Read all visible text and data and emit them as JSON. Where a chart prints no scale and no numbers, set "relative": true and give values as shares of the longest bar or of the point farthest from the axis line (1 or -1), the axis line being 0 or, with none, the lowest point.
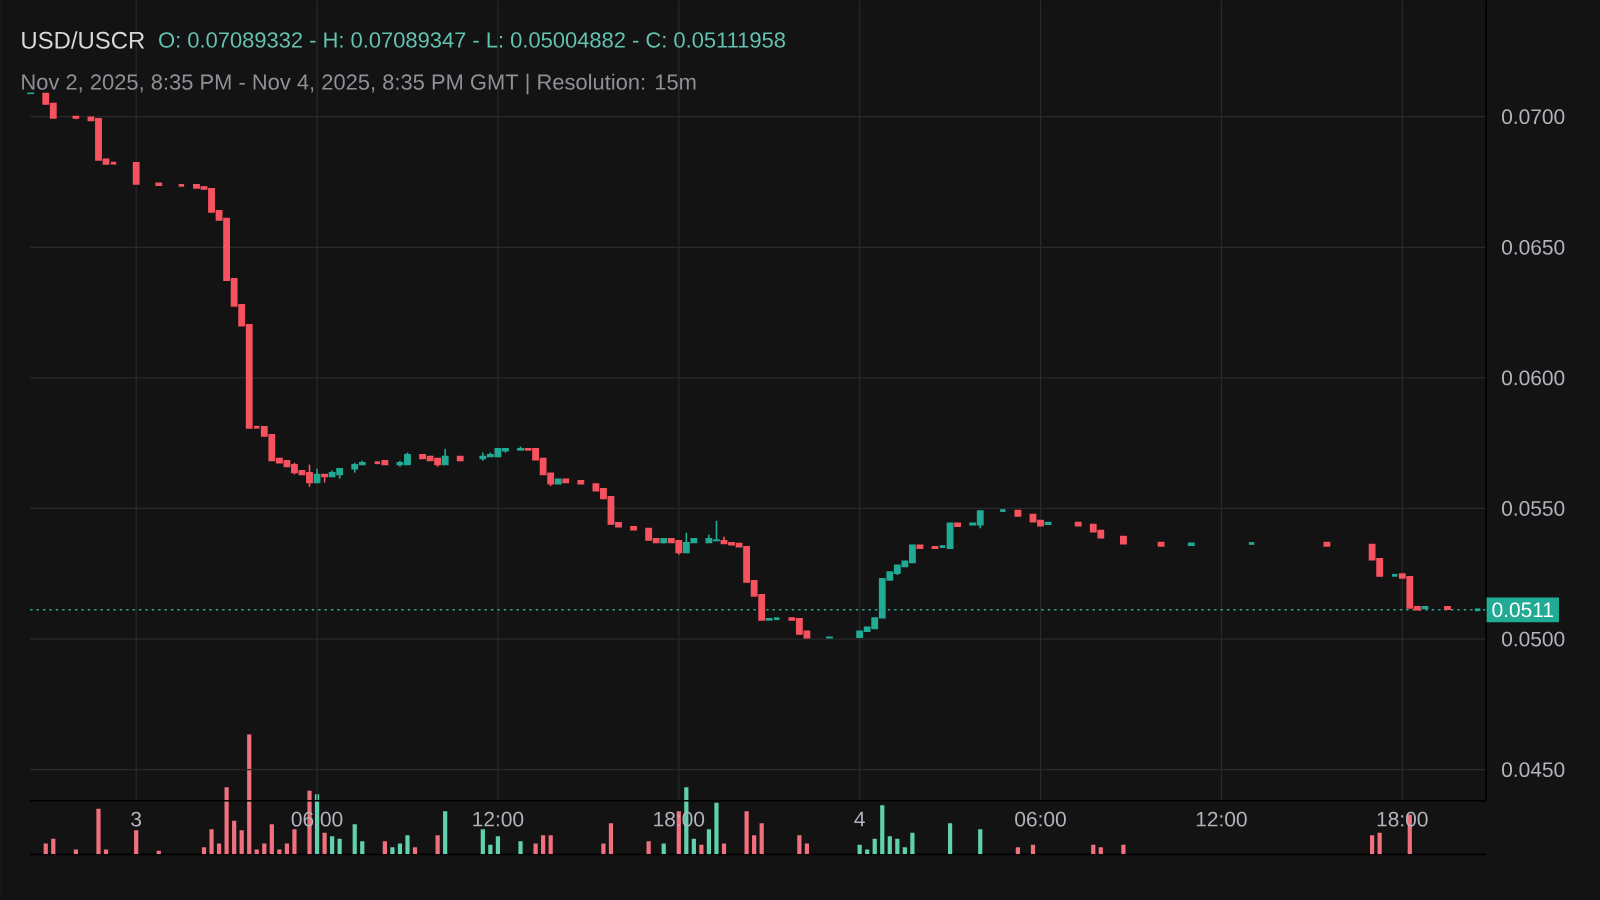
{
  "chart_data": [
    {
      "type": "candlestick",
      "title": "USD/USCR",
      "annotations": [
        "O: 0.07089332 - H: 0.07089347 - L: 0.05004882 - C: 0.05111958",
        "Nov 2, 2025, 8:35 PM - Nov 4, 2025, 8:35 PM GMT   |   Resolution: 15m"
      ],
      "series": [
        {
          "color": "#22ab94",
          "x": [
            "2025-11-02T20:30",
            "2025-11-03T06:00",
            "2025-11-03T06:30",
            "2025-11-03T06:45",
            "2025-11-03T07:15",
            "2025-11-03T07:30",
            "2025-11-03T08:45",
            "2025-11-03T09:00",
            "2025-11-03T10:15",
            "2025-11-03T11:30",
            "2025-11-03T11:45",
            "2025-11-03T12:00",
            "2025-11-03T12:15",
            "2025-11-03T12:45",
            "2025-11-03T14:00",
            "2025-11-03T17:30",
            "2025-11-03T18:15",
            "2025-11-03T18:30",
            "2025-11-03T19:00",
            "2025-11-03T19:15",
            "2025-11-03T21:00",
            "2025-11-03T21:15",
            "2025-11-03T23:00",
            "2025-11-04T00:00",
            "2025-11-04T00:15",
            "2025-11-04T00:30",
            "2025-11-04T00:45",
            "2025-11-04T01:00",
            "2025-11-04T01:15",
            "2025-11-04T01:30",
            "2025-11-04T01:45",
            "2025-11-04T02:45",
            "2025-11-04T03:00",
            "2025-11-04T03:45",
            "2025-11-04T04:00",
            "2025-11-04T04:45",
            "2025-11-04T06:15",
            "2025-11-04T11:00",
            "2025-11-04T13:00",
            "2025-11-04T17:45",
            "2025-11-04T18:45",
            "2025-11-04T20:30"
          ],
          "ohlc": [
            [
              0.07089,
              0.0709,
              0.07089,
              0.0709
            ],
            [
              0.05599,
              0.05652,
              0.05599,
              0.0563
            ],
            [
              0.05622,
              0.05645,
              0.05622,
              0.05637
            ],
            [
              0.0563,
              0.05652,
              0.05614,
              0.05652
            ],
            [
              0.05652,
              0.05675,
              0.05637,
              0.05668
            ],
            [
              0.05668,
              0.05683,
              0.05668,
              0.05675
            ],
            [
              0.05668,
              0.05683,
              0.0566,
              0.05675
            ],
            [
              0.05668,
              0.05714,
              0.05668,
              0.05706
            ],
            [
              0.05668,
              0.05729,
              0.05668,
              0.05699
            ],
            [
              0.05691,
              0.05714,
              0.05683,
              0.05699
            ],
            [
              0.05699,
              0.05714,
              0.05699,
              0.05706
            ],
            [
              0.05699,
              0.05729,
              0.05699,
              0.05729
            ],
            [
              0.05721,
              0.05729,
              0.05714,
              0.05729
            ],
            [
              0.05724,
              0.05737,
              0.05724,
              0.05729
            ],
            [
              0.05594,
              0.05612,
              0.05594,
              0.05612
            ],
            [
              0.05369,
              0.05384,
              0.05366,
              0.05384
            ],
            [
              0.05331,
              0.05407,
              0.05331,
              0.05369
            ],
            [
              0.05369,
              0.05384,
              0.05369,
              0.05384
            ],
            [
              0.05369,
              0.05399,
              0.05369,
              0.05384
            ],
            [
              0.05377,
              0.05453,
              0.05377,
              0.05379
            ],
            [
              0.05073,
              0.05078,
              0.05073,
              0.05078
            ],
            [
              0.05078,
              0.05078,
              0.05078,
              0.05078
            ],
            [
              0.05005,
              0.05007,
              0.05005,
              0.05007
            ],
            [
              0.05007,
              0.0503,
              0.05007,
              0.0503
            ],
            [
              0.0503,
              0.05045,
              0.0503,
              0.05045
            ],
            [
              0.0504,
              0.05081,
              0.0504,
              0.05081
            ],
            [
              0.05081,
              0.05231,
              0.05081,
              0.05231
            ],
            [
              0.05226,
              0.05257,
              0.05226,
              0.05257
            ],
            [
              0.05252,
              0.05283,
              0.05245,
              0.05283
            ],
            [
              0.05278,
              0.05298,
              0.05278,
              0.05298
            ],
            [
              0.05293,
              0.05359,
              0.05293,
              0.05359
            ],
            [
              0.05354,
              0.05354,
              0.05354,
              0.05354
            ],
            [
              0.05347,
              0.05444,
              0.05347,
              0.05444
            ],
            [
              0.05437,
              0.05444,
              0.05437,
              0.05444
            ],
            [
              0.05437,
              0.0549,
              0.05424,
              0.0549
            ],
            [
              0.05492,
              0.05492,
              0.05492,
              0.05492
            ],
            [
              0.05439,
              0.05446,
              0.05439,
              0.05446
            ],
            [
              0.05359,
              0.05367,
              0.05359,
              0.05367
            ],
            [
              0.05366,
              0.05366,
              0.05366,
              0.05366
            ],
            [
              0.05244,
              0.05244,
              0.05244,
              0.05244
            ],
            [
              0.05117,
              0.05124,
              0.05117,
              0.05124
            ],
            [
              0.05112,
              0.05112,
              0.05112,
              0.05112
            ]
          ]
        },
        {
          "color": "#f7525f",
          "x": [
            "2025-11-02T21:00",
            "2025-11-02T21:15",
            "2025-11-02T22:00",
            "2025-11-02T22:30",
            "2025-11-02T22:45",
            "2025-11-02T23:00",
            "2025-11-02T23:15",
            "2025-11-03T00:00",
            "2025-11-03T00:45",
            "2025-11-03T01:30",
            "2025-11-03T02:00",
            "2025-11-03T02:15",
            "2025-11-03T02:30",
            "2025-11-03T02:45",
            "2025-11-03T03:00",
            "2025-11-03T03:15",
            "2025-11-03T03:30",
            "2025-11-03T03:45",
            "2025-11-03T04:00",
            "2025-11-03T04:15",
            "2025-11-03T04:30",
            "2025-11-03T04:45",
            "2025-11-03T05:00",
            "2025-11-03T05:15",
            "2025-11-03T05:30",
            "2025-11-03T05:45",
            "2025-11-03T06:15",
            "2025-11-03T08:00",
            "2025-11-03T08:15",
            "2025-11-03T09:30",
            "2025-11-03T09:45",
            "2025-11-03T10:00",
            "2025-11-03T10:45",
            "2025-11-03T13:00",
            "2025-11-03T13:15",
            "2025-11-03T13:30",
            "2025-11-03T13:45",
            "2025-11-03T14:15",
            "2025-11-03T14:45",
            "2025-11-03T15:15",
            "2025-11-03T15:30",
            "2025-11-03T15:45",
            "2025-11-03T16:00",
            "2025-11-03T16:30",
            "2025-11-03T17:00",
            "2025-11-03T17:15",
            "2025-11-03T17:45",
            "2025-11-03T18:00",
            "2025-11-03T19:30",
            "2025-11-03T19:45",
            "2025-11-03T20:00",
            "2025-11-03T20:15",
            "2025-11-03T20:30",
            "2025-11-03T20:45",
            "2025-11-03T21:45",
            "2025-11-03T22:00",
            "2025-11-03T22:15",
            "2025-11-04T02:00",
            "2025-11-04T02:30",
            "2025-11-04T03:15",
            "2025-11-04T05:15",
            "2025-11-04T05:45",
            "2025-11-04T06:00",
            "2025-11-04T07:15",
            "2025-11-04T07:45",
            "2025-11-04T08:00",
            "2025-11-04T08:45",
            "2025-11-04T10:00",
            "2025-11-04T15:30",
            "2025-11-04T17:00",
            "2025-11-04T17:15",
            "2025-11-04T18:00",
            "2025-11-04T18:15",
            "2025-11-04T18:30",
            "2025-11-04T19:30"
          ],
          "ohlc": [
            [
              0.07089,
              0.07089,
              0.07048,
              0.07048
            ],
            [
              0.07051,
              0.07051,
              0.06995,
              0.06995
            ],
            [
              0.07001,
              0.07001,
              0.0699,
              0.06995
            ],
            [
              0.06998,
              0.06998,
              0.06985,
              0.06985
            ],
            [
              0.06992,
              0.06992,
              0.06834,
              0.06834
            ],
            [
              0.06837,
              0.06837,
              0.06819,
              0.06819
            ],
            [
              0.06822,
              0.06822,
              0.06822,
              0.06822
            ],
            [
              0.06824,
              0.06824,
              0.06742,
              0.06742
            ],
            [
              0.06745,
              0.06745,
              0.06737,
              0.06737
            ],
            [
              0.06737,
              0.06737,
              0.06737,
              0.06737
            ],
            [
              0.0674,
              0.0674,
              0.06727,
              0.06727
            ],
            [
              0.06731,
              0.06735,
              0.06723,
              0.06723
            ],
            [
              0.06724,
              0.06724,
              0.06635,
              0.06635
            ],
            [
              0.0664,
              0.0664,
              0.06604,
              0.06604
            ],
            [
              0.0661,
              0.0661,
              0.06374,
              0.06374
            ],
            [
              0.0638,
              0.0638,
              0.06275,
              0.06275
            ],
            [
              0.0628,
              0.0628,
              0.06199,
              0.06199
            ],
            [
              0.06204,
              0.06204,
              0.05808,
              0.05808
            ],
            [
              0.05811,
              0.05811,
              0.05811,
              0.05811
            ],
            [
              0.05813,
              0.05813,
              0.05777,
              0.05777
            ],
            [
              0.05782,
              0.05782,
              0.05683,
              0.05683
            ],
            [
              0.05691,
              0.05691,
              0.05675,
              0.05675
            ],
            [
              0.05683,
              0.05683,
              0.0566,
              0.0566
            ],
            [
              0.05668,
              0.05675,
              0.0563,
              0.05637
            ],
            [
              0.05645,
              0.05645,
              0.0563,
              0.0563
            ],
            [
              0.05637,
              0.05668,
              0.05583,
              0.05599
            ],
            [
              0.0563,
              0.0563,
              0.05599,
              0.05622
            ],
            [
              0.05675,
              0.05675,
              0.05675,
              0.05675
            ],
            [
              0.05683,
              0.05683,
              0.05668,
              0.05668
            ],
            [
              0.05706,
              0.05706,
              0.05691,
              0.05691
            ],
            [
              0.05699,
              0.05699,
              0.05683,
              0.05683
            ],
            [
              0.05691,
              0.05691,
              0.0566,
              0.05668
            ],
            [
              0.05699,
              0.05699,
              0.05683,
              0.05683
            ],
            [
              0.05729,
              0.05729,
              0.05724,
              0.05724
            ],
            [
              0.05729,
              0.05732,
              0.05686,
              0.05686
            ],
            [
              0.05691,
              0.05691,
              0.0563,
              0.0563
            ],
            [
              0.05635,
              0.05635,
              0.05586,
              0.05594
            ],
            [
              0.05612,
              0.05612,
              0.05599,
              0.05599
            ],
            [
              0.05606,
              0.05606,
              0.05594,
              0.05594
            ],
            [
              0.05594,
              0.05594,
              0.05568,
              0.05568
            ],
            [
              0.05576,
              0.05576,
              0.05538,
              0.05538
            ],
            [
              0.05545,
              0.05545,
              0.0544,
              0.0544
            ],
            [
              0.05445,
              0.05445,
              0.0543,
              0.0543
            ],
            [
              0.0543,
              0.0543,
              0.05418,
              0.05418
            ],
            [
              0.05423,
              0.05423,
              0.05379,
              0.05379
            ],
            [
              0.05384,
              0.05384,
              0.05369,
              0.05369
            ],
            [
              0.05384,
              0.05384,
              0.05369,
              0.05369
            ],
            [
              0.05377,
              0.05377,
              0.05323,
              0.05331
            ],
            [
              0.05377,
              0.05392,
              0.05366,
              0.05366
            ],
            [
              0.05369,
              0.05369,
              0.05361,
              0.05361
            ],
            [
              0.05366,
              0.05366,
              0.05353,
              0.05353
            ],
            [
              0.05354,
              0.05354,
              0.05218,
              0.05218
            ],
            [
              0.05223,
              0.05223,
              0.05165,
              0.05165
            ],
            [
              0.0517,
              0.0517,
              0.05073,
              0.05073
            ],
            [
              0.05081,
              0.05081,
              0.05073,
              0.05073
            ],
            [
              0.05078,
              0.05078,
              0.05019,
              0.05019
            ],
            [
              0.0503,
              0.0503,
              0.05005,
              0.05005
            ],
            [
              0.05359,
              0.05359,
              0.05347,
              0.05347
            ],
            [
              0.05354,
              0.05354,
              0.05347,
              0.05347
            ],
            [
              0.05444,
              0.05444,
              0.05432,
              0.05432
            ],
            [
              0.05492,
              0.05492,
              0.05471,
              0.05471
            ],
            [
              0.05477,
              0.05477,
              0.05449,
              0.05449
            ],
            [
              0.05454,
              0.05454,
              0.05434,
              0.05434
            ],
            [
              0.05446,
              0.05446,
              0.05434,
              0.05434
            ],
            [
              0.05439,
              0.05439,
              0.05411,
              0.05411
            ],
            [
              0.05416,
              0.05416,
              0.05388,
              0.05388
            ],
            [
              0.05393,
              0.05393,
              0.05365,
              0.05365
            ],
            [
              0.0537,
              0.0537,
              0.05356,
              0.05356
            ],
            [
              0.0537,
              0.0537,
              0.05356,
              0.05356
            ],
            [
              0.05362,
              0.05362,
              0.05303,
              0.05303
            ],
            [
              0.05308,
              0.05308,
              0.05241,
              0.05241
            ],
            [
              0.05249,
              0.05249,
              0.05234,
              0.05234
            ],
            [
              0.05239,
              0.05239,
              0.05119,
              0.05119
            ],
            [
              0.05124,
              0.05124,
              0.05112,
              0.05112
            ],
            [
              0.05124,
              0.05124,
              0.05114,
              0.05114
            ]
          ]
        }
      ],
      "xlim": [
        "2025-11-02T20:29",
        "2025-11-04T20:47"
      ],
      "xticks": [
        {
          "value": "2025-11-03T00:00",
          "label": "3"
        },
        {
          "value": "2025-11-03T06:00",
          "label": "06:00"
        },
        {
          "value": "2025-11-03T12:00",
          "label": "12:00"
        },
        {
          "value": "2025-11-03T18:00",
          "label": "18:00"
        },
        {
          "value": "2025-11-04T00:00",
          "label": "4"
        },
        {
          "value": "2025-11-04T06:00",
          "label": "06:00"
        },
        {
          "value": "2025-11-04T12:00",
          "label": "12:00"
        },
        {
          "value": "2025-11-04T18:00",
          "label": "18:00"
        }
      ],
      "ylim": [
        0.04381,
        0.07444
      ],
      "yticks": [
        {
          "value": 0.045,
          "label": "0.0450"
        },
        {
          "value": 0.05,
          "label": "0.0500"
        },
        {
          "value": 0.055,
          "label": "0.0550"
        },
        {
          "value": 0.06,
          "label": "0.0600"
        },
        {
          "value": 0.065,
          "label": "0.0650"
        },
        {
          "value": 0.07,
          "label": "0.0700"
        }
      ],
      "grid": true,
      "ref_lines": [
        {
          "axis": "y",
          "value": 0.05112,
          "label": "0.0511",
          "color": "#22ab94",
          "line_style": "dotted"
        }
      ]
    },
    {
      "type": "bar",
      "relative": true,
      "tick_labels": false,
      "xlim": [
        "2025-11-02T20:29",
        "2025-11-04T20:47"
      ],
      "series": [
        {
          "color": "#5fd1ac",
          "x": [
            "2025-11-03T06:00",
            "2025-11-03T06:30",
            "2025-11-03T06:45",
            "2025-11-03T07:15",
            "2025-11-03T07:30",
            "2025-11-03T08:30",
            "2025-11-03T08:45",
            "2025-11-03T09:00",
            "2025-11-03T10:15",
            "2025-11-03T11:30",
            "2025-11-03T11:45",
            "2025-11-03T12:00",
            "2025-11-03T12:45",
            "2025-11-03T17:30",
            "2025-11-03T18:15",
            "2025-11-03T18:30",
            "2025-11-03T19:00",
            "2025-11-03T19:15",
            "2025-11-04T00:00",
            "2025-11-04T00:15",
            "2025-11-04T00:30",
            "2025-11-04T00:45",
            "2025-11-04T01:00",
            "2025-11-04T01:15",
            "2025-11-04T01:30",
            "2025-11-04T01:45",
            "2025-11-04T03:00",
            "2025-11-04T04:00"
          ],
          "values": [
            0.5,
            0.15,
            0.13,
            0.25,
            0.11,
            0.06,
            0.09,
            0.16,
            0.36,
            0.21,
            0.08,
            0.15,
            0.11,
            0.09,
            0.56,
            0.13,
            0.21,
            0.43,
            0.08,
            0.04,
            0.13,
            0.41,
            0.15,
            0.13,
            0.06,
            0.18,
            0.26,
            0.21
          ]
        },
        {
          "color": "#f0707e",
          "x": [
            "2025-11-02T21:00",
            "2025-11-02T21:15",
            "2025-11-02T22:00",
            "2025-11-02T22:45",
            "2025-11-02T23:00",
            "2025-11-03T00:00",
            "2025-11-03T00:45",
            "2025-11-03T02:15",
            "2025-11-03T02:30",
            "2025-11-03T02:45",
            "2025-11-03T03:00",
            "2025-11-03T03:15",
            "2025-11-03T03:30",
            "2025-11-03T03:45",
            "2025-11-03T04:00",
            "2025-11-03T04:15",
            "2025-11-03T04:30",
            "2025-11-03T04:45",
            "2025-11-03T05:00",
            "2025-11-03T05:15",
            "2025-11-03T05:45",
            "2025-11-03T06:15",
            "2025-11-03T08:15",
            "2025-11-03T09:15",
            "2025-11-03T10:00",
            "2025-11-03T13:15",
            "2025-11-03T13:30",
            "2025-11-03T13:45",
            "2025-11-03T15:30",
            "2025-11-03T15:45",
            "2025-11-03T17:00",
            "2025-11-03T18:00",
            "2025-11-03T18:45",
            "2025-11-03T19:30",
            "2025-11-03T20:15",
            "2025-11-03T20:30",
            "2025-11-03T20:45",
            "2025-11-03T22:00",
            "2025-11-03T22:15",
            "2025-11-04T05:15",
            "2025-11-04T05:45",
            "2025-11-04T07:45",
            "2025-11-04T08:00",
            "2025-11-04T08:45",
            "2025-11-04T17:00",
            "2025-11-04T17:15",
            "2025-11-04T18:15"
          ],
          "values": [
            0.09,
            0.13,
            0.04,
            0.38,
            0.04,
            0.2,
            0.03,
            0.06,
            0.21,
            0.09,
            0.56,
            0.28,
            0.2,
            1,
            0.04,
            0.09,
            0.25,
            0.04,
            0.09,
            0.21,
            0.53,
            0.18,
            0.11,
            0.06,
            0.16,
            0.09,
            0.16,
            0.16,
            0.09,
            0.26,
            0.11,
            0.36,
            0.08,
            0.09,
            0.36,
            0.16,
            0.26,
            0.16,
            0.09,
            0.06,
            0.08,
            0.08,
            0.06,
            0.08,
            0.16,
            0.18,
            0.33
          ]
        }
      ]
    }
  ]
}
